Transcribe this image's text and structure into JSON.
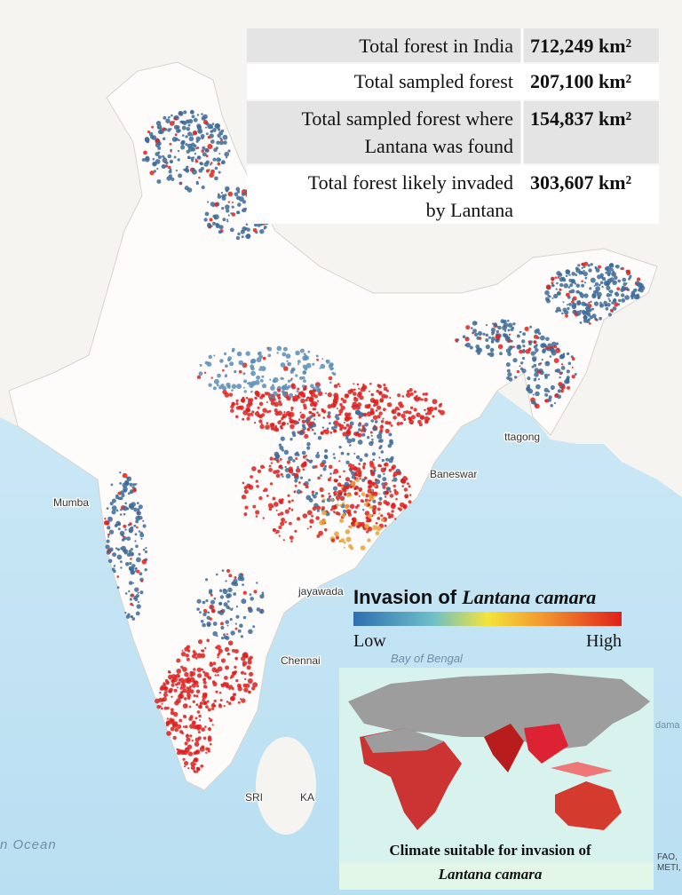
{
  "stats": {
    "rows": [
      {
        "label": [
          "Total forest in India"
        ],
        "value": "712,249 km²"
      },
      {
        "label": [
          "Total sampled forest"
        ],
        "value": "207,100 km²"
      },
      {
        "label": [
          "Total sampled forest where",
          "Lantana was found"
        ],
        "value": "154,837 km²"
      },
      {
        "label": [
          "Total forest likely invaded",
          "by Lantana"
        ],
        "value": "303,607 km²"
      }
    ]
  },
  "legend": {
    "title": "Invasion of",
    "species": "Lantana camara",
    "low": "Low",
    "high": "High"
  },
  "inset": {
    "caption": "Climate suitable for invasion of",
    "species": "Lantana camara"
  },
  "map_labels": [
    "Mumba",
    "Baneswar",
    "jayawada",
    "Chennai",
    "Bay of Bengal",
    "n Ocean",
    "ttagong",
    "SRI",
    "KA",
    "dama",
    "FAO,",
    "METI,"
  ]
}
